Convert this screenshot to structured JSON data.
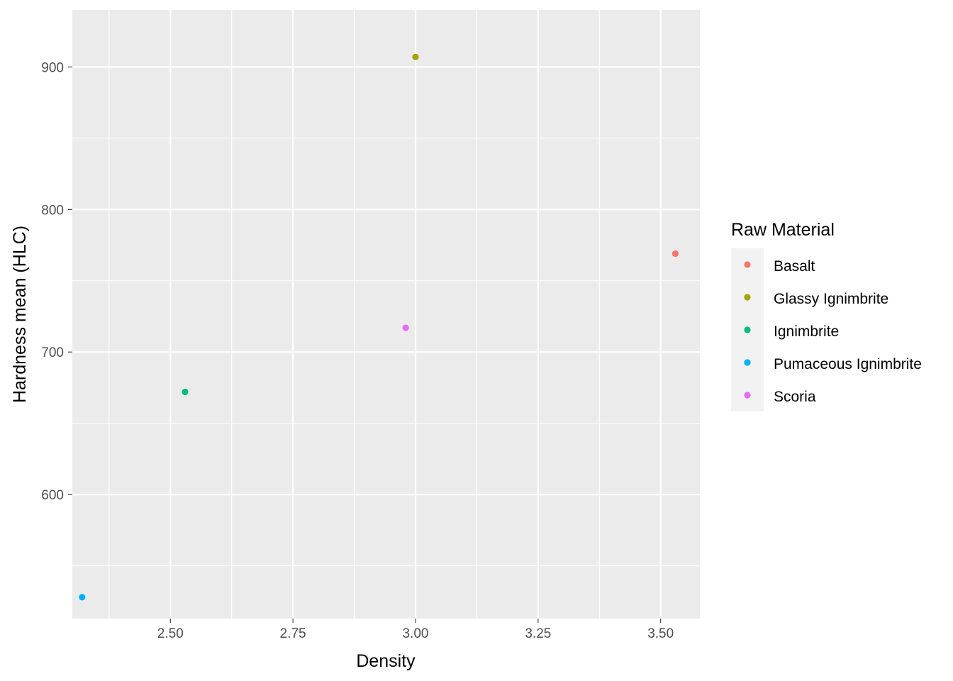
{
  "chart_data": {
    "type": "scatter",
    "xlabel": "Density",
    "ylabel": "Hardness mean (HLC)",
    "xlim": [
      2.3,
      3.58
    ],
    "ylim": [
      513,
      940
    ],
    "x_ticks": [
      2.5,
      2.75,
      3.0,
      3.25,
      3.5
    ],
    "x_tick_labels": [
      "2.50",
      "2.75",
      "3.00",
      "3.25",
      "3.50"
    ],
    "y_ticks": [
      600,
      700,
      800,
      900
    ],
    "y_tick_labels": [
      "600",
      "700",
      "800",
      "900"
    ],
    "grid": true,
    "legend": {
      "title": "Raw Material",
      "placement": "right"
    },
    "series": [
      {
        "name": "Basalt",
        "color": "#F8766D",
        "x": [
          3.53
        ],
        "y": [
          769
        ]
      },
      {
        "name": "Glassy Ignimbrite",
        "color": "#A3A500",
        "x": [
          3.0
        ],
        "y": [
          907
        ]
      },
      {
        "name": "Ignimbrite",
        "color": "#00BF7D",
        "x": [
          2.53
        ],
        "y": [
          672
        ]
      },
      {
        "name": "Pumaceous Ignimbrite",
        "color": "#00B0F6",
        "x": [
          2.32
        ],
        "y": [
          528
        ]
      },
      {
        "name": "Scoria",
        "color": "#E76BF3",
        "x": [
          2.98
        ],
        "y": [
          717
        ]
      }
    ]
  }
}
